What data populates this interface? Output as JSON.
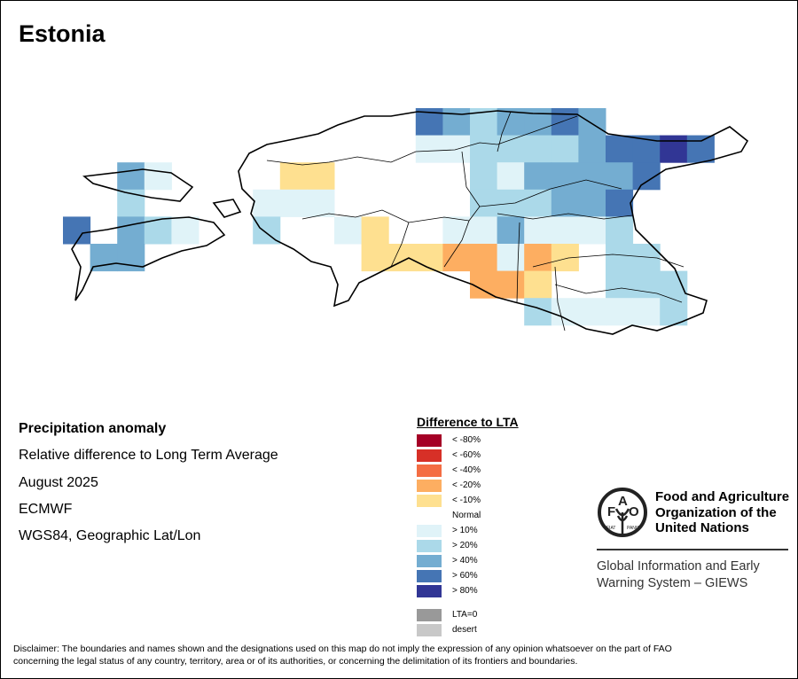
{
  "title": "Estonia",
  "info": {
    "heading": "Precipitation anomaly",
    "line1": "Relative difference to Long Term Average",
    "line2": "August 2025",
    "line3": "ECMWF",
    "line4": "WGS84, Geographic Lat/Lon"
  },
  "legend": {
    "title": "Difference to LTA",
    "items": [
      {
        "label": "< -80%",
        "color": "#a50026"
      },
      {
        "label": "< -60%",
        "color": "#d73027"
      },
      {
        "label": "< -40%",
        "color": "#f46d43"
      },
      {
        "label": "< -20%",
        "color": "#fdae61"
      },
      {
        "label": "< -10%",
        "color": "#fee090"
      },
      {
        "label": "Normal",
        "color": "#ffffff"
      },
      {
        "label": "> 10%",
        "color": "#e0f3f8"
      },
      {
        "label": "> 20%",
        "color": "#abd9e9"
      },
      {
        "label": "> 40%",
        "color": "#74add1"
      },
      {
        "label": "> 60%",
        "color": "#4575b4"
      },
      {
        "label": "> 80%",
        "color": "#313695"
      }
    ],
    "extra": [
      {
        "label": "LTA=0",
        "color": "#999999"
      },
      {
        "label": "desert",
        "color": "#c8c8c8"
      }
    ]
  },
  "map_grid": {
    "classes_note": "cells are [row, col, legend item index]",
    "cells": [
      [
        0,
        13,
        9
      ],
      [
        0,
        14,
        8
      ],
      [
        0,
        15,
        7
      ],
      [
        0,
        16,
        8
      ],
      [
        0,
        17,
        8
      ],
      [
        0,
        18,
        9
      ],
      [
        0,
        19,
        8
      ],
      [
        1,
        13,
        6
      ],
      [
        1,
        14,
        6
      ],
      [
        1,
        15,
        7
      ],
      [
        1,
        16,
        7
      ],
      [
        1,
        17,
        7
      ],
      [
        1,
        18,
        7
      ],
      [
        1,
        19,
        8
      ],
      [
        1,
        20,
        9
      ],
      [
        1,
        21,
        9
      ],
      [
        1,
        22,
        10
      ],
      [
        1,
        23,
        9
      ],
      [
        2,
        2,
        8
      ],
      [
        2,
        3,
        6
      ],
      [
        2,
        8,
        4
      ],
      [
        2,
        9,
        4
      ],
      [
        2,
        15,
        7
      ],
      [
        2,
        16,
        6
      ],
      [
        2,
        17,
        8
      ],
      [
        2,
        18,
        8
      ],
      [
        2,
        19,
        8
      ],
      [
        2,
        20,
        8
      ],
      [
        2,
        21,
        9
      ],
      [
        3,
        2,
        7
      ],
      [
        3,
        7,
        6
      ],
      [
        3,
        8,
        6
      ],
      [
        3,
        9,
        6
      ],
      [
        3,
        15,
        7
      ],
      [
        3,
        16,
        7
      ],
      [
        3,
        17,
        7
      ],
      [
        3,
        18,
        8
      ],
      [
        3,
        19,
        8
      ],
      [
        3,
        20,
        9
      ],
      [
        4,
        0,
        9
      ],
      [
        4,
        2,
        8
      ],
      [
        4,
        3,
        7
      ],
      [
        4,
        4,
        6
      ],
      [
        4,
        7,
        7
      ],
      [
        4,
        10,
        6
      ],
      [
        4,
        11,
        4
      ],
      [
        4,
        14,
        6
      ],
      [
        4,
        15,
        6
      ],
      [
        4,
        16,
        8
      ],
      [
        4,
        17,
        6
      ],
      [
        4,
        18,
        6
      ],
      [
        4,
        19,
        6
      ],
      [
        4,
        20,
        7
      ],
      [
        5,
        1,
        8
      ],
      [
        5,
        2,
        8
      ],
      [
        5,
        11,
        4
      ],
      [
        5,
        12,
        4
      ],
      [
        5,
        13,
        4
      ],
      [
        5,
        14,
        3
      ],
      [
        5,
        15,
        3
      ],
      [
        5,
        16,
        6
      ],
      [
        5,
        17,
        3
      ],
      [
        5,
        18,
        4
      ],
      [
        5,
        20,
        7
      ],
      [
        5,
        21,
        7
      ],
      [
        6,
        15,
        3
      ],
      [
        6,
        16,
        3
      ],
      [
        6,
        17,
        4
      ],
      [
        6,
        20,
        7
      ],
      [
        6,
        21,
        7
      ],
      [
        6,
        22,
        7
      ],
      [
        7,
        17,
        7
      ],
      [
        7,
        18,
        6
      ],
      [
        7,
        19,
        6
      ],
      [
        7,
        20,
        6
      ],
      [
        7,
        21,
        6
      ],
      [
        7,
        22,
        7
      ]
    ]
  },
  "logo": {
    "letters": "FAO",
    "motto": "FIAT PANIS",
    "org_line1": "Food and Agriculture",
    "org_line2": "Organization of the",
    "org_line3": "United Nations"
  },
  "giews": {
    "line1": "Global Information and Early",
    "line2": "Warning System – GIEWS"
  },
  "disclaimer": {
    "line1": "Disclaimer: The boundaries and names shown and the designations used on this map do not imply the expression of any opinion whatsoever on the part of FAO",
    "line2": "concerning the legal status of any country, territory, area or of its authorities, or concerning the delimitation of its frontiers and boundaries."
  }
}
